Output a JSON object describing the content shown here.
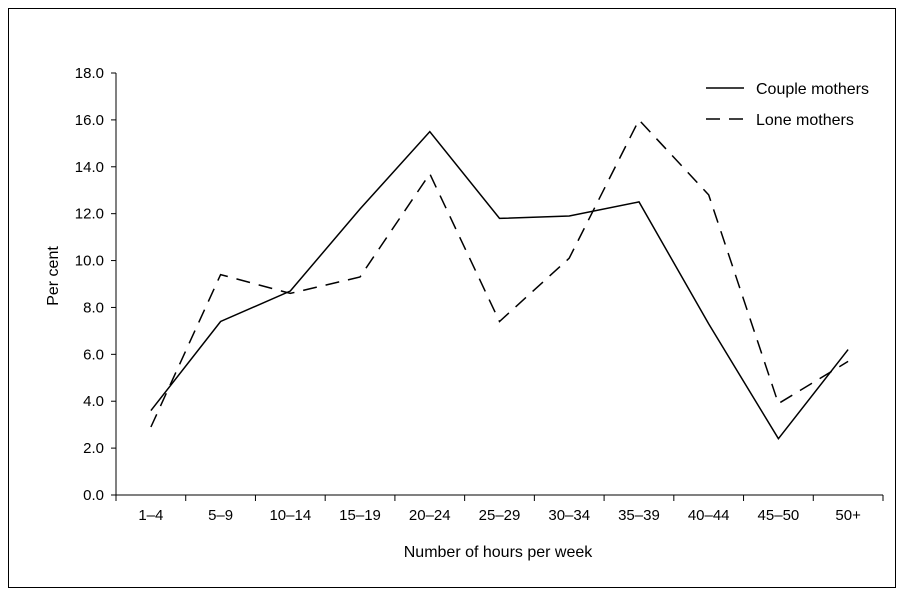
{
  "chart_data": {
    "type": "line",
    "title": "",
    "xlabel": "Number of hours per week",
    "ylabel": "Per cent",
    "categories": [
      "1–4",
      "5–9",
      "10–14",
      "15–19",
      "20–24",
      "25–29",
      "30–34",
      "35–39",
      "40–44",
      "45–50",
      "50+"
    ],
    "yticks": [
      "0.0",
      "2.0",
      "4.0",
      "6.0",
      "8.0",
      "10.0",
      "12.0",
      "14.0",
      "16.0",
      "18.0"
    ],
    "ylim": [
      0,
      18
    ],
    "grid": false,
    "legend_position": "top-right",
    "series": [
      {
        "name": "Couple mothers",
        "line_style": "solid",
        "values": [
          3.6,
          7.4,
          8.7,
          12.2,
          15.5,
          11.8,
          11.9,
          12.5,
          7.3,
          2.4,
          6.2
        ]
      },
      {
        "name": "Lone mothers",
        "line_style": "dashed",
        "values": [
          2.9,
          9.4,
          8.6,
          9.3,
          13.7,
          7.4,
          10.1,
          16.0,
          12.8,
          3.9,
          5.7
        ]
      }
    ],
    "colors": {
      "line": "#000000"
    }
  }
}
